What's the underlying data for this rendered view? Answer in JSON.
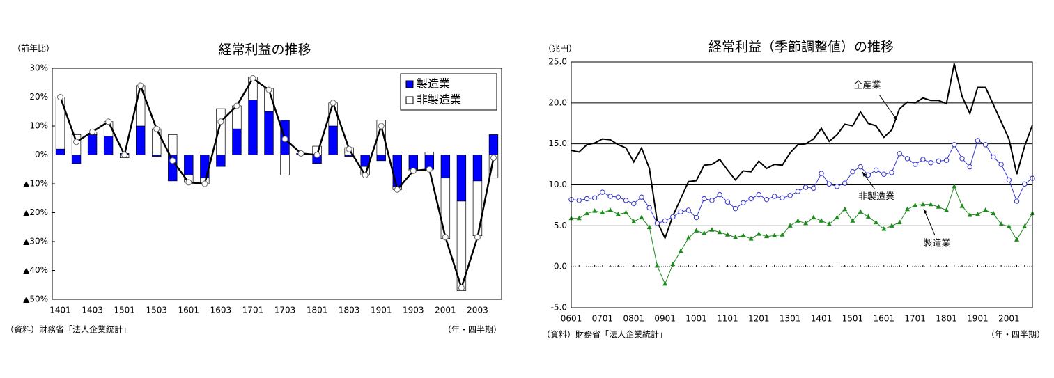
{
  "chart_data": [
    {
      "type": "bar",
      "stacked": true,
      "title": "経常利益の推移",
      "ylabel": "（前年比）",
      "xlabel": "（年・四半期）",
      "source": "（資料）財務省「法人企業統計」",
      "categories": [
        "1401",
        null,
        "1403",
        null,
        "1501",
        null,
        "1503",
        null,
        "1601",
        null,
        "1603",
        null,
        "1701",
        null,
        "1703",
        null,
        "1801",
        null,
        "1803",
        null,
        "1901",
        null,
        "1903",
        null,
        "2001",
        null,
        "2003",
        null
      ],
      "series": [
        {
          "name": "製造業",
          "color": "#0000ff",
          "values": [
            2,
            -3,
            7,
            6.5,
            0.5,
            10,
            -0.5,
            -9,
            -7,
            -8,
            -4,
            9,
            19,
            15,
            12,
            0.5,
            -3,
            10,
            -0.5,
            -4,
            -2,
            -11,
            -5,
            -5,
            -8,
            -16,
            -9,
            7
          ]
        },
        {
          "name": "非製造業",
          "color": "#ffffff",
          "values": [
            18,
            7,
            1,
            5,
            -1,
            14,
            9,
            7,
            -2.5,
            -2,
            16,
            8,
            8,
            8,
            -7,
            0,
            3,
            8,
            2.5,
            -3,
            12,
            -1,
            -0.5,
            1,
            -21,
            -31,
            -19,
            -8
          ]
        },
        {
          "type": "line",
          "color": "#000000",
          "marker": "circle",
          "values": [
            20,
            4.5,
            8,
            11.5,
            0,
            24,
            9,
            -2,
            -9.5,
            -10,
            11.5,
            17,
            26.5,
            22.5,
            5.5,
            0.5,
            0,
            18,
            2,
            -7,
            10,
            -12,
            -5.5,
            -5,
            -28.5,
            -46,
            -28.5,
            -1
          ]
        }
      ],
      "ylim": [
        -50,
        30
      ],
      "yticks": [
        {
          "value": 30,
          "label": "30%"
        },
        {
          "value": 20,
          "label": "20%"
        },
        {
          "value": 10,
          "label": "10%"
        },
        {
          "value": 0,
          "label": "0%"
        },
        {
          "value": -10,
          "label": "▲10%"
        },
        {
          "value": -20,
          "label": "▲20%"
        },
        {
          "value": -30,
          "label": "▲30%"
        },
        {
          "value": -40,
          "label": "▲40%"
        },
        {
          "value": -50,
          "label": "▲50%"
        }
      ],
      "grid": false,
      "legend": "upper right"
    },
    {
      "type": "line",
      "title": "経常利益（季節調整値）の推移",
      "ylabel": "（兆円）",
      "xlabel": "（年・四半期）",
      "source": "（資料）財務省「法人企業統計」",
      "categories": [
        "0601",
        null,
        null,
        null,
        "0701",
        null,
        null,
        null,
        "0801",
        null,
        null,
        null,
        "0901",
        null,
        null,
        null,
        "1001",
        null,
        null,
        null,
        "1101",
        null,
        null,
        null,
        "1201",
        null,
        null,
        null,
        "1301",
        null,
        null,
        null,
        "1401",
        null,
        null,
        null,
        "1501",
        null,
        null,
        null,
        "1601",
        null,
        null,
        null,
        "1701",
        null,
        null,
        null,
        "1801",
        null,
        null,
        null,
        "1901",
        null,
        null,
        null,
        "2001",
        null,
        null,
        null
      ],
      "series": [
        {
          "name": "全産業",
          "color": "#000000",
          "marker": "none",
          "values": [
            14.2,
            14.0,
            14.9,
            15.1,
            15.6,
            15.5,
            14.9,
            14.5,
            12.8,
            14.5,
            12.0,
            5.5,
            3.5,
            6.2,
            8.3,
            10.4,
            10.5,
            12.4,
            12.5,
            13.1,
            11.8,
            10.6,
            11.7,
            11.6,
            12.9,
            12.0,
            12.5,
            12.4,
            13.9,
            14.9,
            15.0,
            15.6,
            16.9,
            15.3,
            16.1,
            17.4,
            17.2,
            18.9,
            17.5,
            17.2,
            15.8,
            16.7,
            19.3,
            20.1,
            20.0,
            20.6,
            20.3,
            20.3,
            19.9,
            24.8,
            20.8,
            18.7,
            21.9,
            21.9,
            19.8,
            17.7,
            15.6,
            11.3,
            14.7,
            17.3
          ]
        },
        {
          "name": "非製造業",
          "color": "#3333cc",
          "marker": "circle",
          "values": [
            8.2,
            8.1,
            8.3,
            8.4,
            9.1,
            8.6,
            8.5,
            8.1,
            7.7,
            8.5,
            7.2,
            5.3,
            5.6,
            6.1,
            6.7,
            6.9,
            6.0,
            8.3,
            8.1,
            8.8,
            7.9,
            7.1,
            7.8,
            8.3,
            8.8,
            8.2,
            8.6,
            8.4,
            8.7,
            9.2,
            9.7,
            9.6,
            11.4,
            10.1,
            9.8,
            10.2,
            11.6,
            12.2,
            11.2,
            11.8,
            11.3,
            11.5,
            13.8,
            13.2,
            12.5,
            13.1,
            12.7,
            12.9,
            13.0,
            14.9,
            13.2,
            12.2,
            15.4,
            14.9,
            13.4,
            12.5,
            10.6,
            8.0,
            10.1,
            10.8
          ]
        },
        {
          "name": "製造業",
          "color": "#1e8a1e",
          "marker": "triangle",
          "values": [
            5.9,
            5.9,
            6.5,
            6.8,
            6.6,
            6.9,
            6.4,
            6.6,
            5.5,
            6.0,
            4.8,
            0.1,
            -2.1,
            0.3,
            1.9,
            3.5,
            4.4,
            4.1,
            4.5,
            4.2,
            3.9,
            3.6,
            3.8,
            3.4,
            4.0,
            3.7,
            3.8,
            3.9,
            5.0,
            5.6,
            5.3,
            6.0,
            5.6,
            5.2,
            6.0,
            7.0,
            5.6,
            6.7,
            6.1,
            5.4,
            4.6,
            5.0,
            5.4,
            7.0,
            7.5,
            7.6,
            7.6,
            7.3,
            6.9,
            9.8,
            7.4,
            6.3,
            6.4,
            6.9,
            6.5,
            5.2,
            4.9,
            3.3,
            4.9,
            6.5
          ]
        }
      ],
      "ylim": [
        -5,
        25
      ],
      "yticks": [
        {
          "value": -5,
          "label": "-5.0"
        },
        {
          "value": 0,
          "label": "0.0"
        },
        {
          "value": 5,
          "label": "5.0"
        },
        {
          "value": 10,
          "label": "10.0"
        },
        {
          "value": 15,
          "label": "15.0"
        },
        {
          "value": 20,
          "label": "20.0"
        },
        {
          "value": 25,
          "label": "25.0"
        }
      ],
      "grid": true,
      "legend": "annotations"
    }
  ]
}
